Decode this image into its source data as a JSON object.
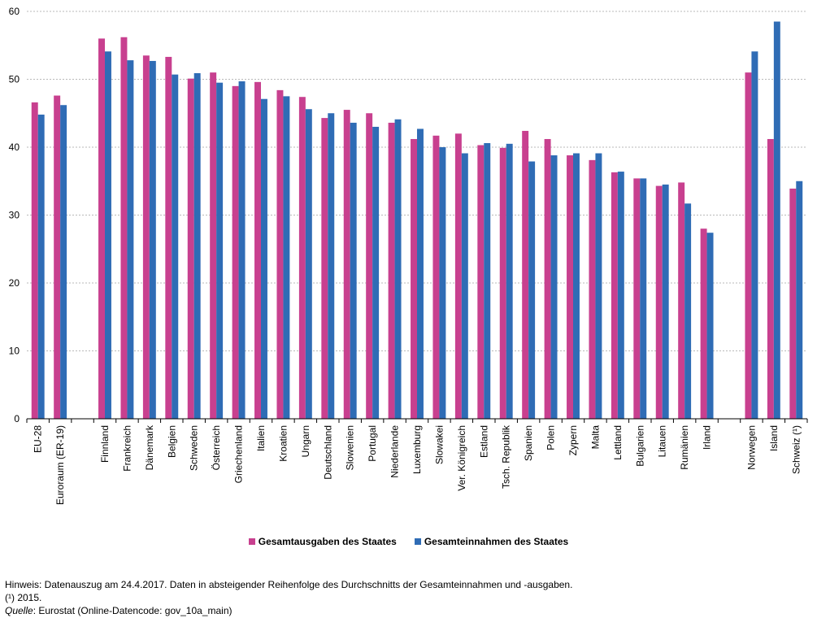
{
  "chart_data": {
    "type": "bar",
    "ylim": [
      0,
      60
    ],
    "yticks": [
      0,
      10,
      20,
      30,
      40,
      50,
      60
    ],
    "grid": true,
    "legend_position": "bottom-center",
    "groups": [
      {
        "categories": [
          "EU-28",
          "Euroraum (ER-19)"
        ]
      },
      {
        "categories": [
          "Finnland",
          "Frankreich",
          "Dänemark",
          "Belgien",
          "Schweden",
          "Österreich",
          "Griechenland",
          "Italien",
          "Kroatien",
          "Ungarn",
          "Deutschland",
          "Slowenien",
          "Portugal",
          "Niederlande",
          "Luxemburg",
          "Slowakei",
          "Ver. Königreich",
          "Estland",
          "Tsch. Republik",
          "Spanien",
          "Polen",
          "Zypern",
          "Malta",
          "Lettland",
          "Bulgarien",
          "Litauen",
          "Rumänien",
          "Irland"
        ]
      },
      {
        "categories": [
          "Norwegen",
          "Island",
          "Schweiz  (¹)"
        ]
      }
    ],
    "series": [
      {
        "name": "Gesamtausgaben des Staates",
        "color": "#c8408f",
        "values": [
          46.6,
          47.6,
          56.0,
          56.2,
          53.5,
          53.3,
          50.1,
          51.0,
          49.0,
          49.6,
          48.4,
          47.4,
          44.3,
          45.5,
          45.0,
          43.6,
          41.2,
          41.7,
          42.0,
          40.3,
          39.9,
          42.4,
          41.2,
          38.8,
          38.1,
          36.3,
          35.4,
          34.3,
          34.8,
          28.0,
          51.0,
          41.2,
          33.9
        ]
      },
      {
        "name": "Gesamteinnahmen des Staates",
        "color": "#2f6cb5",
        "values": [
          44.8,
          46.2,
          54.1,
          52.8,
          52.7,
          50.7,
          50.9,
          49.5,
          49.7,
          47.1,
          47.5,
          45.6,
          45.0,
          43.6,
          43.0,
          44.1,
          42.7,
          40.0,
          39.1,
          40.6,
          40.5,
          37.9,
          38.8,
          39.1,
          39.1,
          36.4,
          35.4,
          34.5,
          31.7,
          27.4,
          54.1,
          58.5,
          35.0
        ]
      }
    ]
  },
  "notes": {
    "hinweis": "Hinweis: Datenauszug am 24.4.2017. Daten in absteigender Reihenfolge des Durchschnitts der Gesamteinnahmen und -ausgaben.",
    "footnote": "(¹) 2015.",
    "source_label": "Quelle",
    "source_text": ":  Eurostat (Online-Datencode: gov_10a_main)"
  }
}
